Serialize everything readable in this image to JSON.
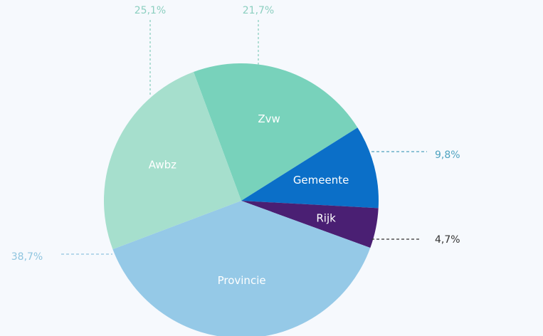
{
  "chart_data": {
    "type": "pie",
    "categories": [
      "Zvw",
      "Gemeente",
      "Rijk",
      "Provincie",
      "Awbz"
    ],
    "values": [
      21.7,
      9.8,
      4.7,
      38.7,
      25.1
    ],
    "percent_labels": [
      "21,7%",
      "9,8%",
      "4,7%",
      "38,7%",
      "25,1%"
    ],
    "colors": [
      "#78d2bb",
      "#0b6fc8",
      "#4a1f73",
      "#95c9e7",
      "#a6dfcd"
    ],
    "label_colors": [
      "#8ccfc0",
      "#4fa3c0",
      "#333333",
      "#8fc5df",
      "#8ccfc0"
    ],
    "legend": "none"
  }
}
